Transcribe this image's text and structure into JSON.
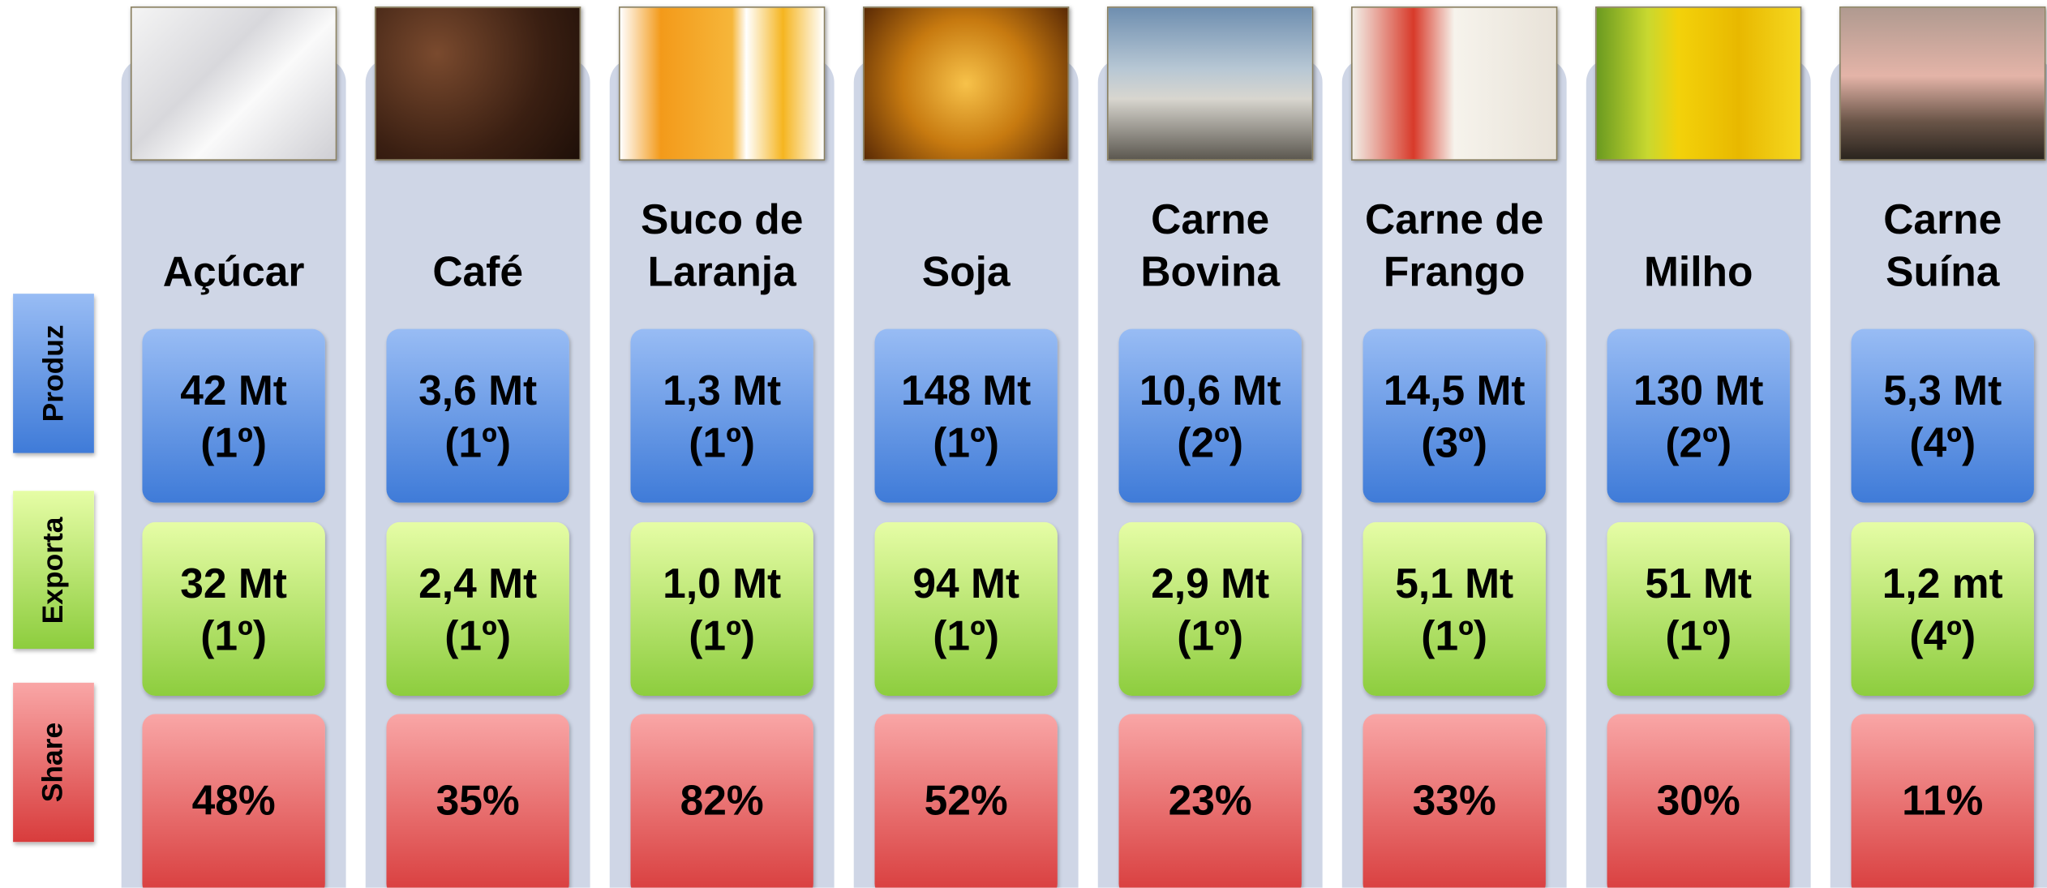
{
  "table": {
    "row_labels": [
      "Produz",
      "Exporta",
      "Share"
    ],
    "columns": [
      {
        "name": "Açúcar",
        "produz": {
          "value": "42 Mt",
          "rank": "(1º)"
        },
        "exporta": {
          "value": "32 Mt",
          "rank": "(1º)"
        },
        "share": "48%"
      },
      {
        "name": "Café",
        "produz": {
          "value": "3,6 Mt",
          "rank": "(1º)"
        },
        "exporta": {
          "value": "2,4 Mt",
          "rank": "(1º)"
        },
        "share": "35%"
      },
      {
        "name": "Suco de Laranja",
        "produz": {
          "value": "1,3 Mt",
          "rank": "(1º)"
        },
        "exporta": {
          "value": "1,0 Mt",
          "rank": "(1º)"
        },
        "share": "82%"
      },
      {
        "name": "Soja",
        "produz": {
          "value": "148 Mt",
          "rank": "(1º)"
        },
        "exporta": {
          "value": "94 Mt",
          "rank": "(1º)"
        },
        "share": "52%"
      },
      {
        "name": "Carne Bovina",
        "produz": {
          "value": "10,6 Mt",
          "rank": "(2º)"
        },
        "exporta": {
          "value": "2,9 Mt",
          "rank": "(1º)"
        },
        "share": "23%"
      },
      {
        "name": "Carne de Frango",
        "produz": {
          "value": "14,5 Mt",
          "rank": "(3º)"
        },
        "exporta": {
          "value": "5,1 Mt",
          "rank": "(1º)"
        },
        "share": "33%"
      },
      {
        "name": "Milho",
        "produz": {
          "value": "130 Mt",
          "rank": "(2º)"
        },
        "exporta": {
          "value": "51 Mt",
          "rank": "(1º)"
        },
        "share": "30%"
      },
      {
        "name": "Carne Suína",
        "produz": {
          "value": "5,3 Mt",
          "rank": "(4º)"
        },
        "exporta": {
          "value": "1,2 mt",
          "rank": "(4º)"
        },
        "share": "11%"
      }
    ]
  }
}
